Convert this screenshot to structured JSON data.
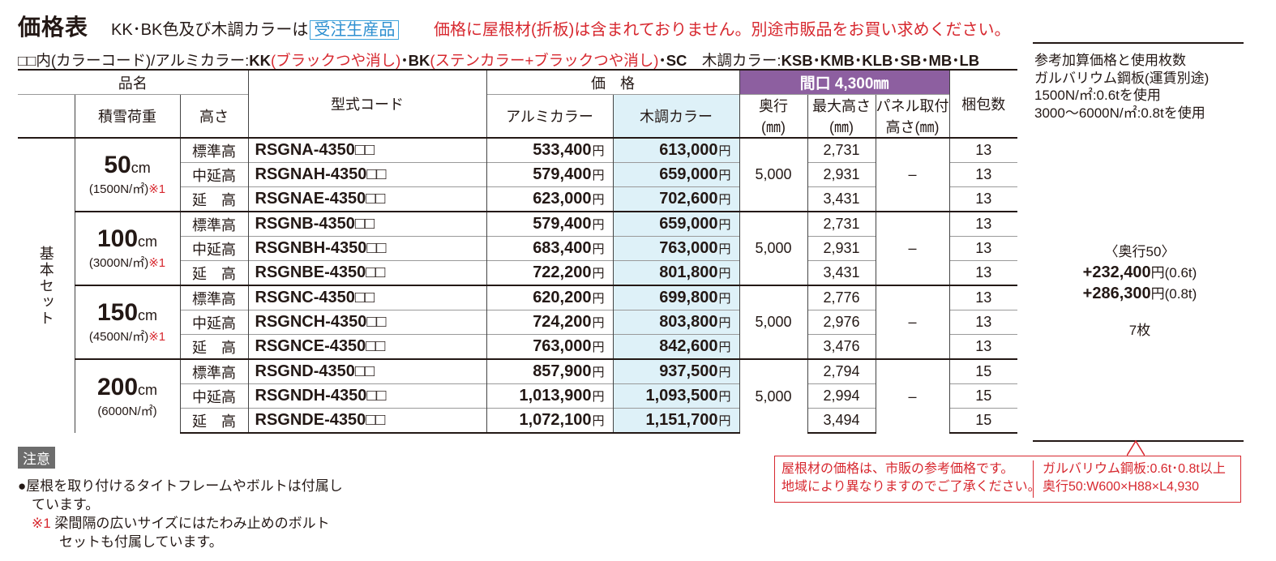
{
  "title": "価格表",
  "subtitle": "KK･BK色及び木調カラーは",
  "badge": "受注生産品",
  "notice": "価格に屋根材(折板)は含まれておりません。別途市販品をお買い求めください。",
  "colorline": {
    "prefix": "□□内(カラーコード)/アルミカラー:",
    "kk": "KK",
    "kk_desc": "(ブラックつや消し)",
    "bk_sep": "･",
    "bk": "BK",
    "bk_desc": "(ステンカラー+ブラックつや消し)",
    "sc": "･SC",
    "wood_label": "　木調カラー:",
    "wood_codes": "KSB･KMB･KLB･SB･MB･LB"
  },
  "headers": {
    "hinmei": "品名",
    "sekisetsu": "積雪荷重",
    "takasa": "高さ",
    "code": "型式コード",
    "price": "価　格",
    "alumi": "アルミカラー",
    "wood": "木調カラー",
    "maguchi": "間口 4,300㎜",
    "okuyuki": "奥行",
    "okuyuki_unit": "(㎜)",
    "max_height": "最大高さ",
    "max_height_unit": "(㎜)",
    "panel": "パネル取付",
    "panel_unit": "高さ(㎜)",
    "pack": "梱包数"
  },
  "set_label": "基本セット",
  "groups": [
    {
      "load": "50",
      "unit": "cm",
      "load_sub": "(1500N/㎡)",
      "mark": "※1",
      "depth": "5,000",
      "panel": "–",
      "rows": [
        {
          "height": "標準高",
          "code": "RSGNA-4350□□",
          "alumi": "533,400",
          "wood": "613,000",
          "max": "2,731",
          "pack": "13"
        },
        {
          "height": "中延高",
          "code": "RSGNAH-4350□□",
          "alumi": "579,400",
          "wood": "659,000",
          "max": "2,931",
          "pack": "13"
        },
        {
          "height": "延　高",
          "code": "RSGNAE-4350□□",
          "alumi": "623,000",
          "wood": "702,600",
          "max": "3,431",
          "pack": "13"
        }
      ]
    },
    {
      "load": "100",
      "unit": "cm",
      "load_sub": "(3000N/㎡)",
      "mark": "※1",
      "depth": "5,000",
      "panel": "–",
      "rows": [
        {
          "height": "標準高",
          "code": "RSGNB-4350□□",
          "alumi": "579,400",
          "wood": "659,000",
          "max": "2,731",
          "pack": "13"
        },
        {
          "height": "中延高",
          "code": "RSGNBH-4350□□",
          "alumi": "683,400",
          "wood": "763,000",
          "max": "2,931",
          "pack": "13"
        },
        {
          "height": "延　高",
          "code": "RSGNBE-4350□□",
          "alumi": "722,200",
          "wood": "801,800",
          "max": "3,431",
          "pack": "13"
        }
      ]
    },
    {
      "load": "150",
      "unit": "cm",
      "load_sub": "(4500N/㎡)",
      "mark": "※1",
      "depth": "5,000",
      "panel": "–",
      "rows": [
        {
          "height": "標準高",
          "code": "RSGNC-4350□□",
          "alumi": "620,200",
          "wood": "699,800",
          "max": "2,776",
          "pack": "13"
        },
        {
          "height": "中延高",
          "code": "RSGNCH-4350□□",
          "alumi": "724,200",
          "wood": "803,800",
          "max": "2,976",
          "pack": "13"
        },
        {
          "height": "延　高",
          "code": "RSGNCE-4350□□",
          "alumi": "763,000",
          "wood": "842,600",
          "max": "3,476",
          "pack": "13"
        }
      ]
    },
    {
      "load": "200",
      "unit": "cm",
      "load_sub": "(6000N/㎡)",
      "mark": "",
      "depth": "5,000",
      "panel": "–",
      "rows": [
        {
          "height": "標準高",
          "code": "RSGND-4350□□",
          "alumi": "857,900",
          "wood": "937,500",
          "max": "2,794",
          "pack": "15"
        },
        {
          "height": "中延高",
          "code": "RSGNDH-4350□□",
          "alumi": "1,013,900",
          "wood": "1,093,500",
          "max": "2,994",
          "pack": "15"
        },
        {
          "height": "延　高",
          "code": "RSGNDE-4350□□",
          "alumi": "1,072,100",
          "wood": "1,151,700",
          "max": "3,494",
          "pack": "15"
        }
      ]
    }
  ],
  "yen": "円",
  "reference": {
    "head1": "参考加算価格と使用枚数",
    "head2": "ガルバリウム鋼板(運賃別途)",
    "head3": "1500N/㎡:0.6tを使用",
    "head4": "3000～6000N/㎡:0.8tを使用",
    "depth_label": "〈奥行50〉",
    "price1": "+232,400",
    "price1_suffix": "円(0.6t)",
    "price2": "+286,300",
    "price2_suffix": "円(0.8t)",
    "count": "7枚"
  },
  "note": {
    "label": "注意",
    "line1": "●屋根を取り付けるタイトフレームやボルトは付属し",
    "line2": "　ています。",
    "line3_mark": "　※1",
    "line3": " 梁間隔の広いサイズにはたわみ止めのボルト",
    "line4": "　　　セットも付属しています。"
  },
  "callout": {
    "left1": "屋根材の価格は、市販の参考価格です。",
    "left2": "地域により異なりますのでご了承ください。",
    "right1": "ガルバリウム鋼板:0.6t･0.8t以上",
    "right2": "奥行50:W600×H88×L4,930"
  },
  "colors": {
    "accent_red": "#d7282f",
    "purple": "#8d5fa0",
    "wood_bg": "#def1f8",
    "badge_blue": "#3ea3dc"
  }
}
